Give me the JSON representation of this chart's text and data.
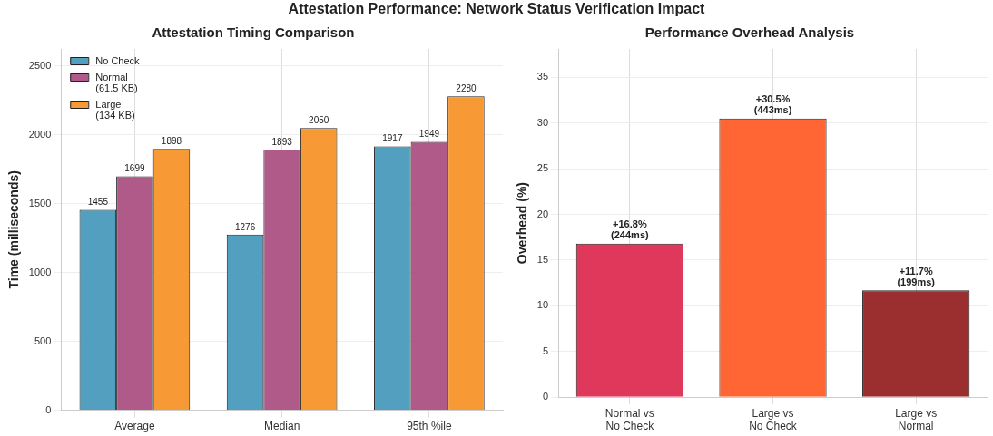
{
  "chart_data": [
    {
      "type": "bar",
      "title": "Attestation Timing Comparison",
      "annotations": [
        "Attestation Performance: Network Status Verification Impact"
      ],
      "ylabel": "Time (milliseconds)",
      "categories": [
        "Average",
        "Median",
        "95th %ile"
      ],
      "series": [
        {
          "name": "No Check",
          "color": "#529fbf",
          "values": [
            1455,
            1276,
            1917
          ]
        },
        {
          "name": "Normal\n(61.5 KB)",
          "color": "#b05a8a",
          "values": [
            1699,
            1893,
            1949
          ]
        },
        {
          "name": "Large\n(134 KB)",
          "color": "#f79a35",
          "values": [
            1898,
            2050,
            2280
          ]
        }
      ],
      "ylim": [
        0,
        2624
      ],
      "yticks": [
        0,
        500,
        1000,
        1500,
        2000,
        2500
      ],
      "grid": true,
      "legend": "top left",
      "data_labels": true
    },
    {
      "type": "bar",
      "title": "Performance Overhead Analysis",
      "ylabel": "Overhead (%)",
      "categories": [
        "Normal vs\nNo Check",
        "Large vs\nNo Check",
        "Large vs\nNormal"
      ],
      "values": [
        16.8,
        30.5,
        11.7
      ],
      "colors": [
        "#e0385a",
        "#ff6633",
        "#9b2f2f"
      ],
      "value_labels": [
        "+16.8%\n(244ms)",
        "+30.5%\n(443ms)",
        "+11.7%\n(199ms)"
      ],
      "ylim": [
        0,
        38.1
      ],
      "yticks": [
        0,
        5,
        10,
        15,
        20,
        25,
        30,
        35
      ],
      "grid": true
    }
  ]
}
